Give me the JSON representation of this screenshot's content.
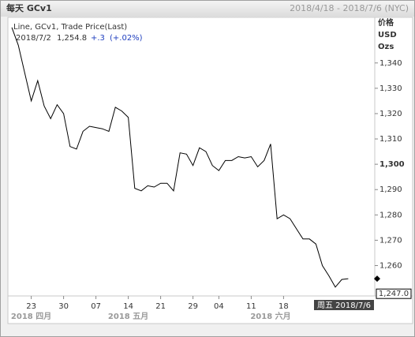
{
  "chart_data": {
    "type": "line",
    "title": "每天 GCv1",
    "date_range": "2018/4/18 - 2018/7/6 (NYC)",
    "legend": "Line, GCv1, Trade Price(Last)",
    "readout": {
      "date": "2018/7/2",
      "value": "1,254.8",
      "change": "+.3",
      "change_pct": "(+.02%)"
    },
    "axis_header": [
      "价格",
      "USD",
      "Ozs"
    ],
    "color": "#000000",
    "categories": [
      "2018/4/18",
      "2018/4/19",
      "2018/4/20",
      "2018/4/23",
      "2018/4/24",
      "2018/4/25",
      "2018/4/26",
      "2018/4/27",
      "2018/4/30",
      "2018/5/1",
      "2018/5/2",
      "2018/5/3",
      "2018/5/4",
      "2018/5/7",
      "2018/5/8",
      "2018/5/9",
      "2018/5/10",
      "2018/5/11",
      "2018/5/14",
      "2018/5/15",
      "2018/5/16",
      "2018/5/17",
      "2018/5/18",
      "2018/5/21",
      "2018/5/22",
      "2018/5/23",
      "2018/5/24",
      "2018/5/25",
      "2018/5/29",
      "2018/5/30",
      "2018/5/31",
      "2018/6/1",
      "2018/6/4",
      "2018/6/5",
      "2018/6/6",
      "2018/6/7",
      "2018/6/8",
      "2018/6/11",
      "2018/6/12",
      "2018/6/13",
      "2018/6/14",
      "2018/6/15",
      "2018/6/18",
      "2018/6/19",
      "2018/6/20",
      "2018/6/21",
      "2018/6/22",
      "2018/6/25",
      "2018/6/26",
      "2018/6/27",
      "2018/6/28",
      "2018/6/29",
      "2018/7/2"
    ],
    "values": [
      1354,
      1347,
      1336,
      1325,
      1333,
      1323,
      1318,
      1323.5,
      1320,
      1307,
      1306,
      1313,
      1315,
      1314.5,
      1314,
      1313,
      1322.5,
      1321,
      1318.5,
      1290.5,
      1289.5,
      1291.5,
      1291,
      1292.5,
      1292.5,
      1289.5,
      1304.5,
      1304,
      1299.5,
      1306.5,
      1305,
      1299.5,
      1297.5,
      1301.5,
      1301.5,
      1303,
      1302.5,
      1303,
      1299,
      1301.5,
      1308,
      1278.5,
      1280,
      1278.5,
      1274.5,
      1270.5,
      1270.5,
      1268.5,
      1260,
      1256,
      1251.5,
      1254.5,
      1254.8
    ],
    "ylim": [
      1248,
      1358
    ],
    "yticks": [
      {
        "value": 1260,
        "label": "1,260"
      },
      {
        "value": 1270,
        "label": "1,270"
      },
      {
        "value": 1280,
        "label": "1,280"
      },
      {
        "value": 1290,
        "label": "1,290"
      },
      {
        "value": 1300,
        "label": "1,300"
      },
      {
        "value": 1310,
        "label": "1,310"
      },
      {
        "value": 1320,
        "label": "1,320"
      },
      {
        "value": 1330,
        "label": "1,330"
      },
      {
        "value": 1340,
        "label": "1,340"
      }
    ],
    "xticks": [
      {
        "value": "2018/4/23",
        "label": "23"
      },
      {
        "value": "2018/4/30",
        "label": "30"
      },
      {
        "value": "2018/5/7",
        "label": "07"
      },
      {
        "value": "2018/5/14",
        "label": "14"
      },
      {
        "value": "2018/5/21",
        "label": "21"
      },
      {
        "value": "2018/5/29",
        "label": "29"
      },
      {
        "value": "2018/6/4",
        "label": "04"
      },
      {
        "value": "2018/6/11",
        "label": "11"
      },
      {
        "value": "2018/6/18",
        "label": "18"
      }
    ],
    "months": [
      {
        "value": "2018/4/23",
        "label": "2018 四月"
      },
      {
        "value": "2018/5/14",
        "label": "2018 五月"
      },
      {
        "value": "2018/6/14",
        "label": "2018 六月"
      }
    ],
    "last_price": {
      "value": 1247,
      "label": "1,247.0"
    },
    "cursor": "周五 2018/7/6"
  }
}
